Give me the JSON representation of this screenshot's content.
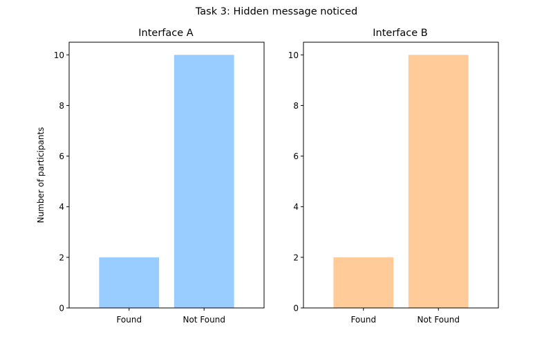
{
  "figure_title": "Task 3: Hidden message noticed",
  "chart_data": [
    {
      "type": "bar",
      "title": "Interface A",
      "categories": [
        "Found",
        "Not Found"
      ],
      "values": [
        2,
        10
      ],
      "color": "#99ccff",
      "xlabel": "",
      "ylabel": "Number of participants",
      "ylim": [
        0,
        10.5
      ],
      "yticks": [
        0,
        2,
        4,
        6,
        8,
        10
      ],
      "grid": false
    },
    {
      "type": "bar",
      "title": "Interface B",
      "categories": [
        "Found",
        "Not Found"
      ],
      "values": [
        2,
        10
      ],
      "color": "#ffcc99",
      "xlabel": "",
      "ylabel": "",
      "ylim": [
        0,
        10.5
      ],
      "yticks": [
        0,
        2,
        4,
        6,
        8,
        10
      ],
      "grid": false
    }
  ]
}
